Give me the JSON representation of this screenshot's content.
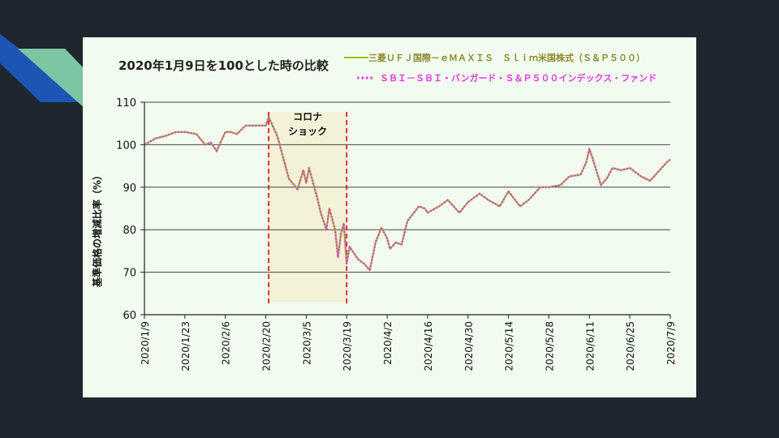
{
  "chart_data": {
    "type": "line",
    "title": "2020年1月9日を100とした時の比較",
    "ylabel": "基準価格の増減比率（%）",
    "xlabel": "",
    "ylim": [
      60,
      110
    ],
    "yticks": [
      60,
      70,
      80,
      90,
      100,
      110
    ],
    "xticks": [
      "2020/1/9",
      "2020/1/23",
      "2020/2/6",
      "2020/2/20",
      "2020/3/5",
      "2020/3/19",
      "2020/4/2",
      "2020/4/16",
      "2020/4/30",
      "2020/5/14",
      "2020/5/28",
      "2020/6/11",
      "2020/6/25",
      "2020/7/9"
    ],
    "grid": true,
    "legend_position": "top-right",
    "annotation": {
      "lines": [
        "コロナ",
        "ショック"
      ],
      "from": "2020-02-21",
      "to": "2020-03-19"
    },
    "dates": [
      "2020-01-09",
      "2020-01-13",
      "2020-01-16",
      "2020-01-20",
      "2020-01-23",
      "2020-01-27",
      "2020-01-30",
      "2020-02-01",
      "2020-02-03",
      "2020-02-06",
      "2020-02-08",
      "2020-02-10",
      "2020-02-13",
      "2020-02-16",
      "2020-02-20",
      "2020-02-21",
      "2020-02-24",
      "2020-02-26",
      "2020-02-28",
      "2020-03-02",
      "2020-03-04",
      "2020-03-05",
      "2020-03-06",
      "2020-03-09",
      "2020-03-10",
      "2020-03-12",
      "2020-03-13",
      "2020-03-15",
      "2020-03-16",
      "2020-03-17",
      "2020-03-18",
      "2020-03-19",
      "2020-03-20",
      "2020-03-23",
      "2020-03-25",
      "2020-03-27",
      "2020-03-29",
      "2020-03-31",
      "2020-04-02",
      "2020-04-03",
      "2020-04-05",
      "2020-04-07",
      "2020-04-09",
      "2020-04-13",
      "2020-04-15",
      "2020-04-16",
      "2020-04-20",
      "2020-04-23",
      "2020-04-27",
      "2020-04-30",
      "2020-05-04",
      "2020-05-07",
      "2020-05-11",
      "2020-05-14",
      "2020-05-18",
      "2020-05-21",
      "2020-05-25",
      "2020-05-28",
      "2020-06-01",
      "2020-06-04",
      "2020-06-08",
      "2020-06-10",
      "2020-06-11",
      "2020-06-12",
      "2020-06-15",
      "2020-06-17",
      "2020-06-19",
      "2020-06-22",
      "2020-06-25",
      "2020-06-29",
      "2020-07-02",
      "2020-07-06",
      "2020-07-08",
      "2020-07-09"
    ],
    "series": [
      {
        "name": "三菱ＵＦＪ国際－ｅＭＡＸＩＳ　Ｓｌｉｍ米国株式（Ｓ＆Ｐ５００）",
        "color": "#8ec400",
        "style": "solid",
        "values": [
          100,
          101.5,
          102,
          103,
          103,
          102.5,
          100,
          100.5,
          98.5,
          103,
          103,
          102.5,
          104.5,
          104.5,
          104.5,
          106.5,
          102,
          97,
          92,
          89.5,
          94,
          91,
          94.5,
          87,
          84,
          80,
          85,
          80,
          73.5,
          79,
          81.5,
          72,
          76,
          73,
          72,
          70.5,
          77,
          80.5,
          78,
          75.5,
          77,
          76.5,
          82,
          85.5,
          85,
          84,
          85.5,
          87,
          84,
          86.5,
          88.5,
          87,
          85.5,
          89,
          85.5,
          87,
          90,
          90,
          90.5,
          92.5,
          93,
          96,
          99,
          97,
          90.5,
          92,
          94.5,
          94,
          94.5,
          92.5,
          91.5,
          94.5,
          96,
          96.5
        ]
      },
      {
        "name": "ＳＢＩ－ＳＢＩ・バンガード・Ｓ＆Ｐ５００インデックス・ファンド",
        "color": "#e23ce0",
        "style": "dotted",
        "values": [
          100,
          101.5,
          102,
          103,
          103,
          102.5,
          100,
          100.5,
          98.5,
          103,
          103,
          102.5,
          104.5,
          104.5,
          104.5,
          106.5,
          102,
          97,
          92,
          89.5,
          94,
          91,
          94.5,
          87,
          84,
          80,
          85,
          80,
          73.5,
          79,
          81.5,
          72,
          76,
          73,
          72,
          70.5,
          77,
          80.5,
          78,
          75.5,
          77,
          76.5,
          82,
          85.5,
          85,
          84,
          85.5,
          87,
          84,
          86.5,
          88.5,
          87,
          85.5,
          89,
          85.5,
          87,
          90,
          90,
          90.5,
          92.5,
          93,
          96,
          99,
          97,
          90.5,
          92,
          94.5,
          94,
          94.5,
          92.5,
          91.5,
          94.5,
          96,
          96.5
        ]
      }
    ]
  }
}
